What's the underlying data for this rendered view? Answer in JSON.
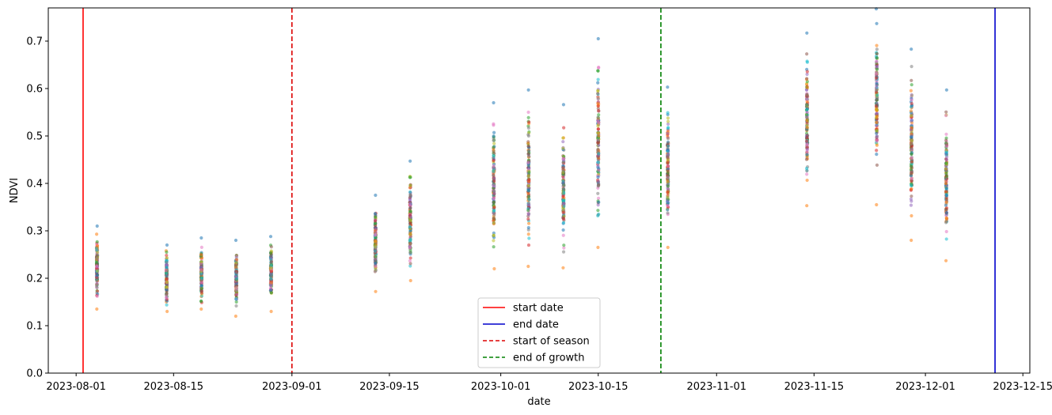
{
  "chart_data": {
    "type": "scatter",
    "xlabel": "date",
    "ylabel": "NDVI",
    "xlim": [
      "2023-07-28",
      "2023-12-16"
    ],
    "ylim": [
      0,
      0.77
    ],
    "x_ticks": [
      "2023-08-01",
      "2023-08-15",
      "2023-09-01",
      "2023-09-15",
      "2023-10-01",
      "2023-10-15",
      "2023-11-01",
      "2023-11-15",
      "2023-12-01",
      "2023-12-15"
    ],
    "y_ticks": [
      0.0,
      0.1,
      0.2,
      0.3,
      0.4,
      0.5,
      0.6,
      0.7
    ],
    "y_tick_labels": [
      "0.0",
      "0.1",
      "0.2",
      "0.3",
      "0.4",
      "0.5",
      "0.6",
      "0.7"
    ],
    "grid": false,
    "legend_placement": "lower center",
    "observations": [
      {
        "date": "2023-08-04",
        "min": 0.135,
        "max": 0.31
      },
      {
        "date": "2023-08-14",
        "min": 0.13,
        "max": 0.27
      },
      {
        "date": "2023-08-19",
        "min": 0.135,
        "max": 0.285
      },
      {
        "date": "2023-08-24",
        "min": 0.12,
        "max": 0.28
      },
      {
        "date": "2023-08-29",
        "min": 0.13,
        "max": 0.288
      },
      {
        "date": "2023-09-13",
        "min": 0.172,
        "max": 0.375
      },
      {
        "date": "2023-09-18",
        "min": 0.195,
        "max": 0.447
      },
      {
        "date": "2023-09-30",
        "min": 0.22,
        "max": 0.57
      },
      {
        "date": "2023-10-05",
        "min": 0.225,
        "max": 0.597
      },
      {
        "date": "2023-10-10",
        "min": 0.222,
        "max": 0.566
      },
      {
        "date": "2023-10-15",
        "min": 0.265,
        "max": 0.705
      },
      {
        "date": "2023-10-25",
        "min": 0.265,
        "max": 0.603
      },
      {
        "date": "2023-11-14",
        "min": 0.353,
        "max": 0.717
      },
      {
        "date": "2023-11-24",
        "min": 0.355,
        "max": 0.768
      },
      {
        "date": "2023-11-29",
        "min": 0.28,
        "max": 0.683
      },
      {
        "date": "2023-12-04",
        "min": 0.237,
        "max": 0.597
      }
    ],
    "reference_lines": [
      {
        "label": "start date",
        "date": "2023-08-02",
        "color": "#ff0000",
        "style": "solid"
      },
      {
        "label": "end date",
        "date": "2023-12-11",
        "color": "#0000cc",
        "style": "solid"
      },
      {
        "label": "start of season",
        "date": "2023-09-01",
        "color": "#dd0000",
        "style": "dashed"
      },
      {
        "label": "end of growth",
        "date": "2023-10-24",
        "color": "#008000",
        "style": "dashed"
      }
    ],
    "point_colors": [
      "#1f77b4",
      "#ff7f0e",
      "#2ca02c",
      "#d62728",
      "#9467bd",
      "#8c564b",
      "#e377c2",
      "#7f7f7f",
      "#bcbd22",
      "#17becf"
    ]
  }
}
